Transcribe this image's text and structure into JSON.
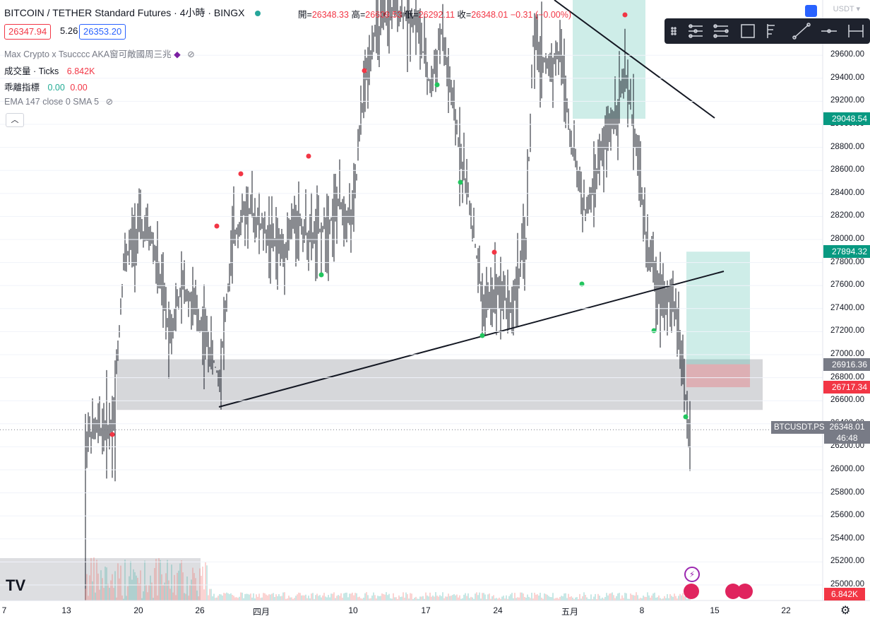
{
  "header": {
    "title": "BITCOIN / TETHER Standard Futures · 4小時 · BINGX",
    "ohlc": {
      "open_label": "開=",
      "open": "26348.33",
      "high_label": "高=",
      "high": "26609.53",
      "low_label": "低=",
      "low": "26292.11",
      "close_label": "收=",
      "close": "26348.01",
      "change": "−0.31 (−0.0",
      "change_tail": "0%)"
    },
    "sell_price": "26347.94",
    "spread": "5.26",
    "buy_price": "26353.20",
    "currency": "USDT"
  },
  "indicators": [
    {
      "label": "Max Crypto x Tsucccc AKA窗可敵國周三兆",
      "values": []
    },
    {
      "label": "成交量 · Ticks",
      "values": [
        "6.842K"
      ]
    },
    {
      "label": "乖離指標",
      "values": [
        "0.00",
        "0.00"
      ]
    },
    {
      "label": "EMA 147 close 0 SMA 5",
      "values": []
    }
  ],
  "toolbar": {
    "icons": [
      "drag-handle-icon",
      "horizontal-rays-icon",
      "parallel-channel-icon",
      "rectangle-icon",
      "fib-icon",
      "trend-line-icon",
      "horizontal-line-icon",
      "date-range-icon"
    ]
  },
  "chart_data": {
    "type": "candlestick",
    "price_range": [
      24950,
      30000
    ],
    "y_ticks": [
      "29600.00",
      "29400.00",
      "29200.00",
      "29000.00",
      "28800.00",
      "28600.00",
      "28400.00",
      "28200.00",
      "28000.00",
      "27800.00",
      "27600.00",
      "27400.00",
      "27200.00",
      "27000.00",
      "26800.00",
      "26600.00",
      "26400.00",
      "26200.00",
      "26000.00",
      "25800.00",
      "25600.00",
      "25400.00",
      "25200.00",
      "25000.00"
    ],
    "x_ticks": [
      {
        "label": "7",
        "px": 6
      },
      {
        "label": "13",
        "px": 94
      },
      {
        "label": "20",
        "px": 196
      },
      {
        "label": "26",
        "px": 283
      },
      {
        "label": "四月",
        "px": 370
      },
      {
        "label": "10",
        "px": 500
      },
      {
        "label": "17",
        "px": 603
      },
      {
        "label": "24",
        "px": 705
      },
      {
        "label": "五月",
        "px": 807
      },
      {
        "label": "8",
        "px": 909
      },
      {
        "label": "15",
        "px": 1012
      },
      {
        "label": "22",
        "px": 1113
      }
    ],
    "price_tags": [
      {
        "value": "29048.54",
        "color": "#089981"
      },
      {
        "value": "27894.32",
        "color": "#089981"
      },
      {
        "value": "26916.36",
        "color": "#787b86"
      },
      {
        "value": "26717.34",
        "color": "#f23645"
      }
    ],
    "last": {
      "symbol": "BTCUSDT.PS",
      "price": "26348.01",
      "countdown": "46:48"
    },
    "support_zone": [
      26520,
      26960
    ],
    "volume_value": "6.842K"
  }
}
